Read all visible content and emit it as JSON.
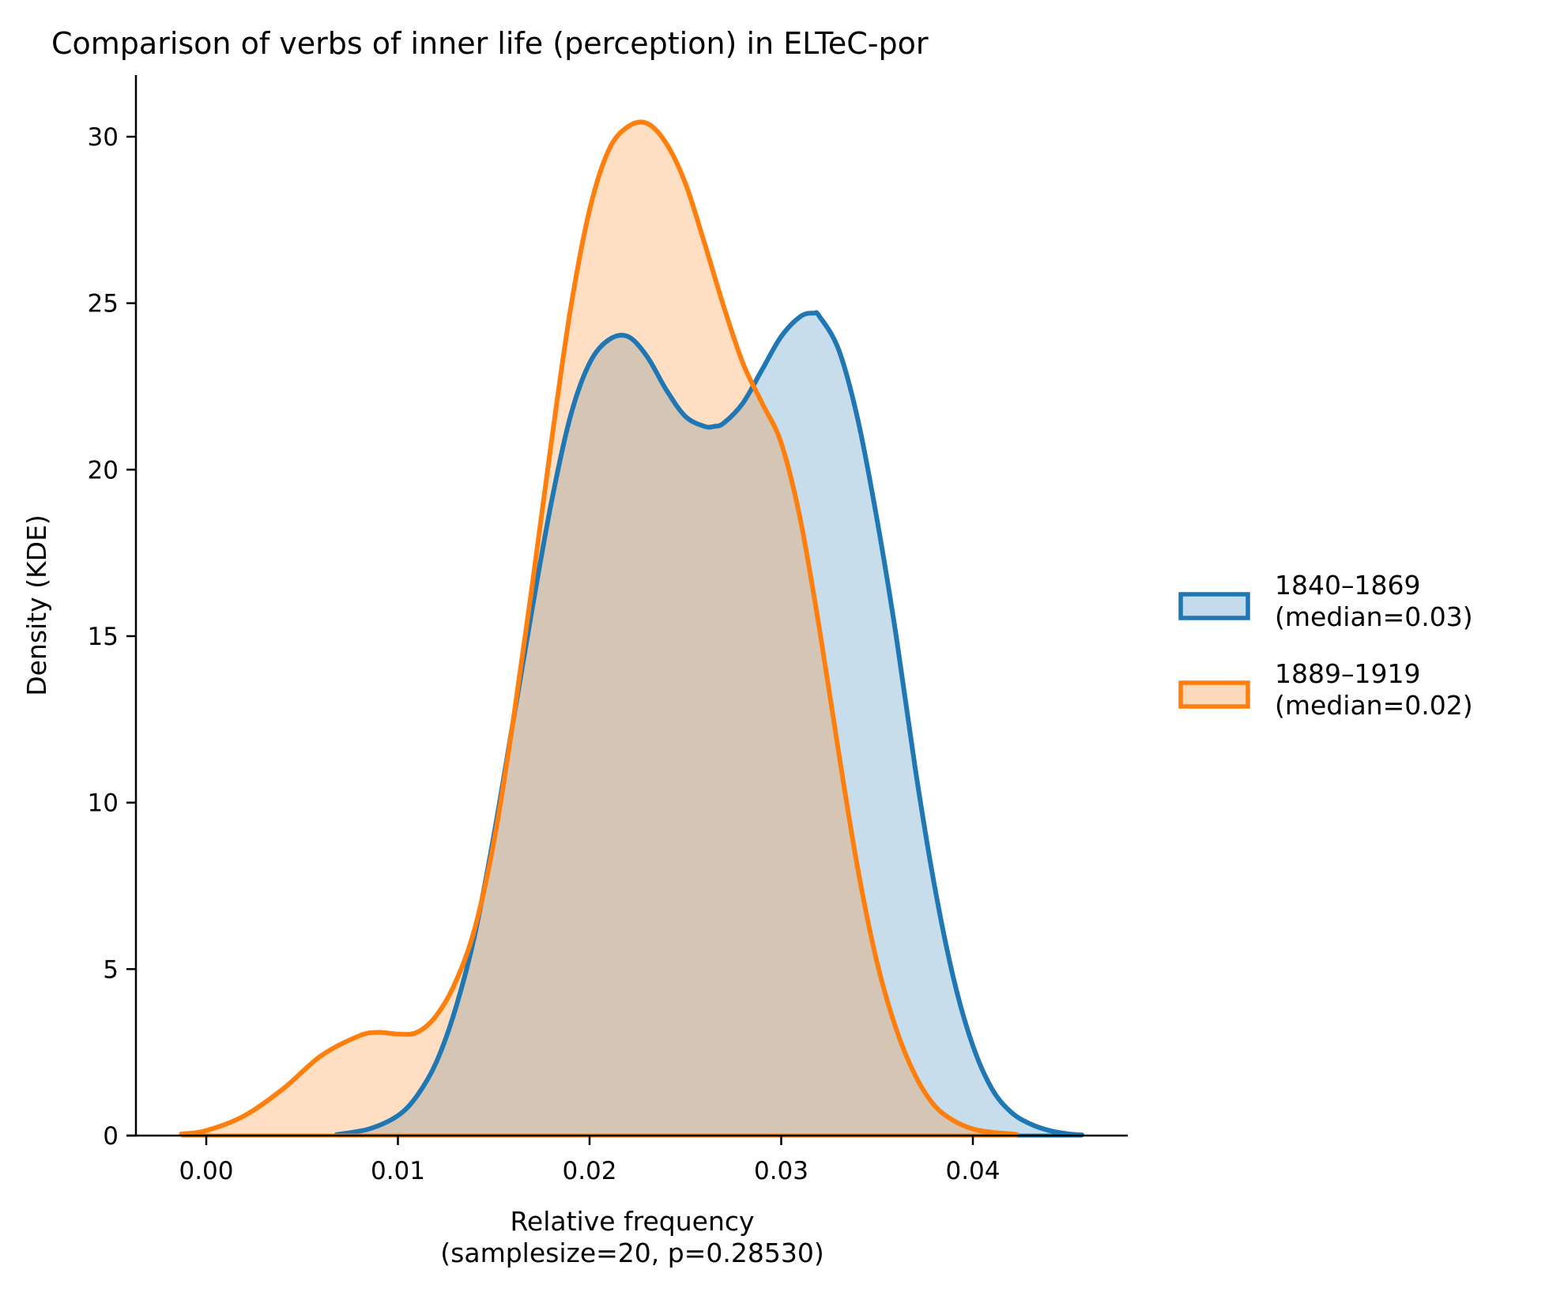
{
  "chart_data": {
    "type": "area",
    "title": "Comparison of verbs of inner life (perception) in ELTeC-por",
    "xlabel_line1": "Relative frequency",
    "xlabel_line2": "(samplesize=20, p=0.28530)",
    "ylabel": "Density (KDE)",
    "xlim": [
      -0.004,
      0.048
    ],
    "ylim": [
      0,
      32
    ],
    "xticks": [
      0.0,
      0.01,
      0.02,
      0.03,
      0.04
    ],
    "xtick_labels": [
      "0.00",
      "0.01",
      "0.02",
      "0.03",
      "0.04"
    ],
    "yticks": [
      0,
      5,
      10,
      15,
      20,
      25,
      30
    ],
    "ytick_labels": [
      "0",
      "5",
      "10",
      "15",
      "20",
      "25",
      "30"
    ],
    "legend_position": "right",
    "grid": false,
    "series": [
      {
        "name_line1": "1840–1869",
        "name_line2": "(median=0.03)",
        "color": "#1f77b4",
        "fill": "#c5dbed",
        "x": [
          0.0068,
          0.0085,
          0.01,
          0.011,
          0.012,
          0.013,
          0.014,
          0.015,
          0.016,
          0.017,
          0.018,
          0.019,
          0.02,
          0.021,
          0.022,
          0.023,
          0.024,
          0.025,
          0.026,
          0.0265,
          0.027,
          0.028,
          0.029,
          0.03,
          0.031,
          0.0317,
          0.032,
          0.033,
          0.034,
          0.035,
          0.036,
          0.037,
          0.038,
          0.039,
          0.04,
          0.041,
          0.042,
          0.043,
          0.044,
          0.045,
          0.0457
        ],
        "y": [
          0.03,
          0.2,
          0.6,
          1.2,
          2.2,
          3.8,
          6.0,
          9.0,
          12.4,
          15.8,
          19.0,
          21.6,
          23.2,
          23.9,
          24.0,
          23.4,
          22.4,
          21.6,
          21.3,
          21.3,
          21.4,
          22.0,
          23.0,
          24.0,
          24.6,
          24.7,
          24.6,
          23.6,
          21.5,
          18.5,
          15.0,
          11.0,
          7.5,
          4.7,
          2.7,
          1.4,
          0.7,
          0.35,
          0.15,
          0.05,
          0.02
        ]
      },
      {
        "name_line1": "1889–1919",
        "name_line2": "(median=0.02)",
        "color": "#ff7f0e",
        "fill": "#fdd9bc",
        "x": [
          -0.0013,
          0.0,
          0.002,
          0.004,
          0.006,
          0.008,
          0.009,
          0.01,
          0.011,
          0.012,
          0.013,
          0.014,
          0.015,
          0.016,
          0.017,
          0.018,
          0.019,
          0.02,
          0.021,
          0.022,
          0.023,
          0.024,
          0.025,
          0.026,
          0.027,
          0.028,
          0.029,
          0.03,
          0.031,
          0.032,
          0.033,
          0.034,
          0.035,
          0.036,
          0.037,
          0.038,
          0.039,
          0.04,
          0.041,
          0.042,
          0.0423
        ],
        "y": [
          0.05,
          0.15,
          0.6,
          1.4,
          2.4,
          3.0,
          3.1,
          3.05,
          3.1,
          3.6,
          4.6,
          6.2,
          8.8,
          12.4,
          16.5,
          20.8,
          24.8,
          27.8,
          29.6,
          30.3,
          30.4,
          29.8,
          28.6,
          26.8,
          24.9,
          23.2,
          22.0,
          20.8,
          18.5,
          15.2,
          11.5,
          8.0,
          5.2,
          3.2,
          1.8,
          0.9,
          0.45,
          0.2,
          0.1,
          0.05,
          0.03
        ]
      }
    ]
  }
}
